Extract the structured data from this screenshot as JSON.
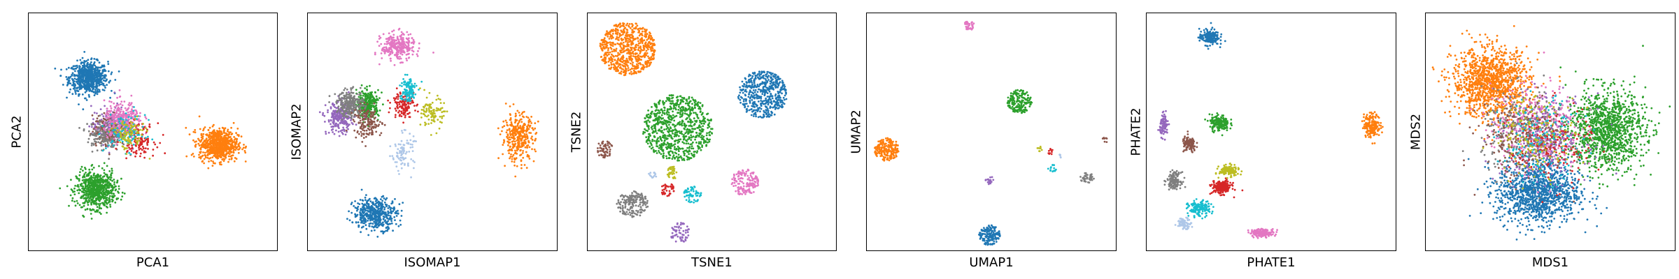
{
  "colors": {
    "blue": "#1f77b4",
    "orange": "#ff7f0e",
    "green": "#2ca02c",
    "red": "#d62728",
    "purple": "#9467bd",
    "brown": "#8c564b",
    "pink": "#e377c2",
    "gray": "#7f7f7f",
    "olive": "#bcbd22",
    "cyan": "#17becf",
    "lightblue": "#aec7e8"
  },
  "chart_data": [
    {
      "type": "scatter",
      "xlabel": "PCA1",
      "ylabel": "PCA2",
      "xlim": [
        0,
        1
      ],
      "ylim": [
        0,
        1
      ],
      "ticks": false,
      "grid": false,
      "legend": "none",
      "clusters": [
        {
          "color": "blue",
          "center": [
            0.24,
            0.73
          ],
          "spread": [
            0.07,
            0.06
          ],
          "n": 700
        },
        {
          "color": "green",
          "center": [
            0.27,
            0.26
          ],
          "spread": [
            0.07,
            0.07
          ],
          "n": 700
        },
        {
          "color": "orange",
          "center": [
            0.76,
            0.45
          ],
          "spread": [
            0.07,
            0.06
          ],
          "n": 750
        },
        {
          "color": "purple",
          "center": [
            0.33,
            0.53
          ],
          "spread": [
            0.07,
            0.07
          ],
          "n": 200
        },
        {
          "color": "brown",
          "center": [
            0.32,
            0.51
          ],
          "spread": [
            0.06,
            0.06
          ],
          "n": 150
        },
        {
          "color": "gray",
          "center": [
            0.3,
            0.49
          ],
          "spread": [
            0.06,
            0.06
          ],
          "n": 150
        },
        {
          "color": "pink",
          "center": [
            0.38,
            0.55
          ],
          "spread": [
            0.07,
            0.07
          ],
          "n": 300
        },
        {
          "color": "red",
          "center": [
            0.44,
            0.47
          ],
          "spread": [
            0.06,
            0.06
          ],
          "n": 120
        },
        {
          "color": "cyan",
          "center": [
            0.39,
            0.5
          ],
          "spread": [
            0.07,
            0.07
          ],
          "n": 100
        },
        {
          "color": "olive",
          "center": [
            0.4,
            0.49
          ],
          "spread": [
            0.06,
            0.06
          ],
          "n": 100
        }
      ]
    },
    {
      "type": "scatter",
      "xlabel": "ISOMAP1",
      "ylabel": "ISOMAP2",
      "xlim": [
        0,
        1
      ],
      "ylim": [
        0,
        1
      ],
      "ticks": false,
      "grid": false,
      "legend": "none",
      "clusters": [
        {
          "color": "pink",
          "center": [
            0.36,
            0.86
          ],
          "spread": [
            0.06,
            0.05
          ],
          "n": 300
        },
        {
          "color": "blue",
          "center": [
            0.27,
            0.16
          ],
          "spread": [
            0.08,
            0.06
          ],
          "n": 450
        },
        {
          "color": "orange",
          "center": [
            0.84,
            0.48
          ],
          "spread": [
            0.06,
            0.09
          ],
          "n": 350
        },
        {
          "color": "green",
          "center": [
            0.24,
            0.62
          ],
          "spread": [
            0.04,
            0.05
          ],
          "n": 300
        },
        {
          "color": "purple",
          "center": [
            0.13,
            0.56
          ],
          "spread": [
            0.05,
            0.06
          ],
          "n": 250
        },
        {
          "color": "gray",
          "center": [
            0.17,
            0.62
          ],
          "spread": [
            0.05,
            0.05
          ],
          "n": 250
        },
        {
          "color": "brown",
          "center": [
            0.24,
            0.54
          ],
          "spread": [
            0.05,
            0.06
          ],
          "n": 150
        },
        {
          "color": "red",
          "center": [
            0.38,
            0.62
          ],
          "spread": [
            0.04,
            0.05
          ],
          "n": 130
        },
        {
          "color": "cyan",
          "center": [
            0.4,
            0.68
          ],
          "spread": [
            0.03,
            0.05
          ],
          "n": 120
        },
        {
          "color": "olive",
          "center": [
            0.5,
            0.58
          ],
          "spread": [
            0.04,
            0.06
          ],
          "n": 100
        },
        {
          "color": "lightblue",
          "center": [
            0.38,
            0.42
          ],
          "spread": [
            0.04,
            0.07
          ],
          "n": 90
        }
      ]
    },
    {
      "type": "scatter",
      "xlabel": "TSNE1",
      "ylabel": "TSNE2",
      "xlim": [
        0,
        1
      ],
      "ylim": [
        0,
        1
      ],
      "ticks": false,
      "grid": false,
      "legend": "none",
      "clusters": [
        {
          "color": "orange",
          "center": [
            0.16,
            0.85
          ],
          "spread": [
            0.08,
            0.08
          ],
          "n": 700,
          "shape": "disk"
        },
        {
          "color": "green",
          "center": [
            0.36,
            0.52
          ],
          "spread": [
            0.1,
            0.1
          ],
          "n": 800,
          "shape": "disk"
        },
        {
          "color": "blue",
          "center": [
            0.7,
            0.66
          ],
          "spread": [
            0.07,
            0.07
          ],
          "n": 500,
          "shape": "disk"
        },
        {
          "color": "pink",
          "center": [
            0.63,
            0.29
          ],
          "spread": [
            0.04,
            0.04
          ],
          "n": 150,
          "shape": "disk"
        },
        {
          "color": "brown",
          "center": [
            0.07,
            0.43
          ],
          "spread": [
            0.025,
            0.025
          ],
          "n": 60,
          "shape": "disk"
        },
        {
          "color": "gray",
          "center": [
            0.18,
            0.2
          ],
          "spread": [
            0.045,
            0.04
          ],
          "n": 180,
          "shape": "disk"
        },
        {
          "color": "red",
          "center": [
            0.32,
            0.26
          ],
          "spread": [
            0.02,
            0.02
          ],
          "n": 40,
          "shape": "disk"
        },
        {
          "color": "cyan",
          "center": [
            0.42,
            0.24
          ],
          "spread": [
            0.025,
            0.025
          ],
          "n": 60,
          "shape": "disk"
        },
        {
          "color": "olive",
          "center": [
            0.34,
            0.33
          ],
          "spread": [
            0.015,
            0.02
          ],
          "n": 35,
          "shape": "disk"
        },
        {
          "color": "lightblue",
          "center": [
            0.26,
            0.32
          ],
          "spread": [
            0.012,
            0.012
          ],
          "n": 15,
          "shape": "disk"
        },
        {
          "color": "purple",
          "center": [
            0.37,
            0.08
          ],
          "spread": [
            0.03,
            0.03
          ],
          "n": 60,
          "shape": "disk"
        }
      ]
    },
    {
      "type": "scatter",
      "xlabel": "UMAP1",
      "ylabel": "UMAP2",
      "xlim": [
        0,
        1
      ],
      "ylim": [
        0,
        1
      ],
      "ticks": false,
      "grid": false,
      "legend": "none",
      "clusters": [
        {
          "color": "pink",
          "center": [
            0.41,
            0.95
          ],
          "spread": [
            0.015,
            0.015
          ],
          "n": 40,
          "shape": "disk"
        },
        {
          "color": "green",
          "center": [
            0.61,
            0.63
          ],
          "spread": [
            0.035,
            0.035
          ],
          "n": 200,
          "shape": "disk"
        },
        {
          "color": "orange",
          "center": [
            0.08,
            0.43
          ],
          "spread": [
            0.035,
            0.035
          ],
          "n": 200,
          "shape": "disk"
        },
        {
          "color": "blue",
          "center": [
            0.49,
            0.07
          ],
          "spread": [
            0.03,
            0.03
          ],
          "n": 150,
          "shape": "disk"
        },
        {
          "color": "purple",
          "center": [
            0.49,
            0.3
          ],
          "spread": [
            0.012,
            0.012
          ],
          "n": 20,
          "shape": "disk"
        },
        {
          "color": "gray",
          "center": [
            0.88,
            0.31
          ],
          "spread": [
            0.02,
            0.015
          ],
          "n": 40,
          "shape": "disk"
        },
        {
          "color": "olive",
          "center": [
            0.69,
            0.43
          ],
          "spread": [
            0.008,
            0.008
          ],
          "n": 8,
          "shape": "disk"
        },
        {
          "color": "red",
          "center": [
            0.73,
            0.42
          ],
          "spread": [
            0.01,
            0.01
          ],
          "n": 10,
          "shape": "disk"
        },
        {
          "color": "lightblue",
          "center": [
            0.77,
            0.4
          ],
          "spread": [
            0.007,
            0.007
          ],
          "n": 6,
          "shape": "disk"
        },
        {
          "color": "cyan",
          "center": [
            0.74,
            0.35
          ],
          "spread": [
            0.012,
            0.012
          ],
          "n": 14,
          "shape": "disk"
        },
        {
          "color": "brown",
          "center": [
            0.95,
            0.47
          ],
          "spread": [
            0.01,
            0.01
          ],
          "n": 8,
          "shape": "disk"
        }
      ]
    },
    {
      "type": "scatter",
      "xlabel": "PHATE1",
      "ylabel": "PHATE2",
      "xlim": [
        0,
        1
      ],
      "ylim": [
        0,
        1
      ],
      "ticks": false,
      "grid": false,
      "legend": "none",
      "clusters": [
        {
          "color": "blue",
          "center": [
            0.25,
            0.9
          ],
          "spread": [
            0.035,
            0.03
          ],
          "n": 180
        },
        {
          "color": "orange",
          "center": [
            0.9,
            0.53
          ],
          "spread": [
            0.03,
            0.045
          ],
          "n": 200
        },
        {
          "color": "green",
          "center": [
            0.29,
            0.54
          ],
          "spread": [
            0.035,
            0.03
          ],
          "n": 180
        },
        {
          "color": "purple",
          "center": [
            0.07,
            0.53
          ],
          "spread": [
            0.015,
            0.04
          ],
          "n": 100
        },
        {
          "color": "brown",
          "center": [
            0.17,
            0.45
          ],
          "spread": [
            0.025,
            0.03
          ],
          "n": 120
        },
        {
          "color": "gray",
          "center": [
            0.11,
            0.3
          ],
          "spread": [
            0.025,
            0.03
          ],
          "n": 140
        },
        {
          "color": "red",
          "center": [
            0.3,
            0.27
          ],
          "spread": [
            0.035,
            0.025
          ],
          "n": 200
        },
        {
          "color": "olive",
          "center": [
            0.33,
            0.34
          ],
          "spread": [
            0.035,
            0.02
          ],
          "n": 150
        },
        {
          "color": "cyan",
          "center": [
            0.21,
            0.18
          ],
          "spread": [
            0.04,
            0.03
          ],
          "n": 150
        },
        {
          "color": "lightblue",
          "center": [
            0.15,
            0.12
          ],
          "spread": [
            0.025,
            0.02
          ],
          "n": 80
        },
        {
          "color": "pink",
          "center": [
            0.46,
            0.08
          ],
          "spread": [
            0.045,
            0.015
          ],
          "n": 160
        }
      ]
    },
    {
      "type": "scatter",
      "xlabel": "MDS1",
      "ylabel": "MDS2",
      "xlim": [
        0,
        1
      ],
      "ylim": [
        0,
        1
      ],
      "ticks": false,
      "grid": false,
      "legend": "none",
      "clusters": [
        {
          "color": "orange",
          "center": [
            0.26,
            0.71
          ],
          "spread": [
            0.14,
            0.13
          ],
          "n": 1200
        },
        {
          "color": "green",
          "center": [
            0.72,
            0.51
          ],
          "spread": [
            0.14,
            0.15
          ],
          "n": 1200
        },
        {
          "color": "blue",
          "center": [
            0.45,
            0.25
          ],
          "spread": [
            0.15,
            0.12
          ],
          "n": 1200
        },
        {
          "color": "pink",
          "center": [
            0.44,
            0.52
          ],
          "spread": [
            0.16,
            0.16
          ],
          "n": 450
        },
        {
          "color": "gray",
          "center": [
            0.4,
            0.5
          ],
          "spread": [
            0.16,
            0.16
          ],
          "n": 300
        },
        {
          "color": "purple",
          "center": [
            0.48,
            0.48
          ],
          "spread": [
            0.16,
            0.16
          ],
          "n": 200
        },
        {
          "color": "brown",
          "center": [
            0.38,
            0.46
          ],
          "spread": [
            0.15,
            0.15
          ],
          "n": 200
        },
        {
          "color": "red",
          "center": [
            0.5,
            0.44
          ],
          "spread": [
            0.15,
            0.15
          ],
          "n": 150
        },
        {
          "color": "cyan",
          "center": [
            0.46,
            0.47
          ],
          "spread": [
            0.15,
            0.15
          ],
          "n": 150
        },
        {
          "color": "olive",
          "center": [
            0.44,
            0.49
          ],
          "spread": [
            0.15,
            0.15
          ],
          "n": 150
        }
      ]
    }
  ]
}
